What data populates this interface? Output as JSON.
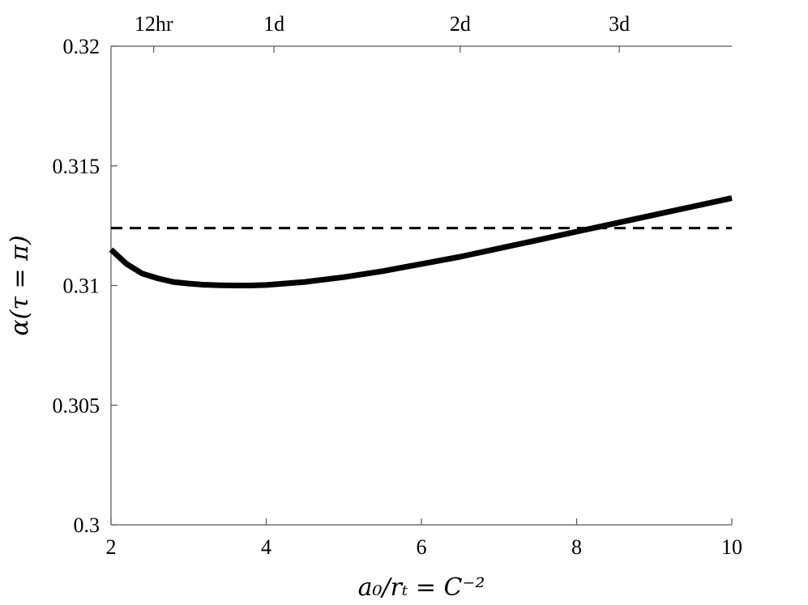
{
  "chart_data": {
    "type": "line",
    "title": "",
    "xlabel": "a₀/rₜ = C⁻²",
    "ylabel": "α(τ = π)",
    "xlim": [
      2,
      10
    ],
    "ylim": [
      0.3,
      0.32
    ],
    "x_ticks": [
      2,
      4,
      6,
      8,
      10
    ],
    "x_tick_labels": [
      "2",
      "4",
      "6",
      "8",
      "10"
    ],
    "y_ticks": [
      0.3,
      0.305,
      0.31,
      0.315,
      0.32
    ],
    "y_tick_labels": [
      "0.3",
      "0.305",
      "0.31",
      "0.315",
      "0.32"
    ],
    "top_axis": {
      "tick_labels": [
        "12hr",
        "1d",
        "2d",
        "3d"
      ],
      "tick_positions_x": [
        2.55,
        4.1,
        6.5,
        8.55
      ]
    },
    "grid": false,
    "series": [
      {
        "style": "solid",
        "color": "#000000",
        "x": [
          2.0,
          2.2,
          2.4,
          2.6,
          2.8,
          3.0,
          3.2,
          3.4,
          3.6,
          3.8,
          4.0,
          4.5,
          5.0,
          5.5,
          6.0,
          6.5,
          7.0,
          7.5,
          8.0,
          8.5,
          9.0,
          9.5,
          10.0
        ],
        "y": [
          0.3115,
          0.3109,
          0.3105,
          0.3103,
          0.31015,
          0.31008,
          0.31003,
          0.31001,
          0.31,
          0.31,
          0.31002,
          0.31015,
          0.31035,
          0.3106,
          0.3109,
          0.3112,
          0.31155,
          0.3119,
          0.31225,
          0.3126,
          0.31295,
          0.3133,
          0.31365
        ]
      },
      {
        "style": "dashed",
        "color": "#000000",
        "x": [
          2.0,
          10.0
        ],
        "y": [
          0.3124,
          0.3124
        ]
      }
    ]
  }
}
